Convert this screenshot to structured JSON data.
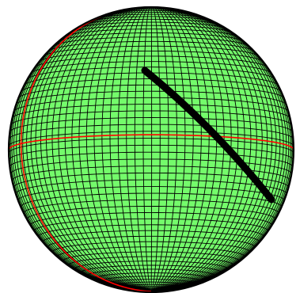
{
  "colors": {
    "background": "#ffffff",
    "sphere_fill": "#74fb6b",
    "grid_line": "#000000",
    "outline": "#000000",
    "meridian": "#ff0000",
    "equator": "#ff0000",
    "path": "#000000"
  }
}
